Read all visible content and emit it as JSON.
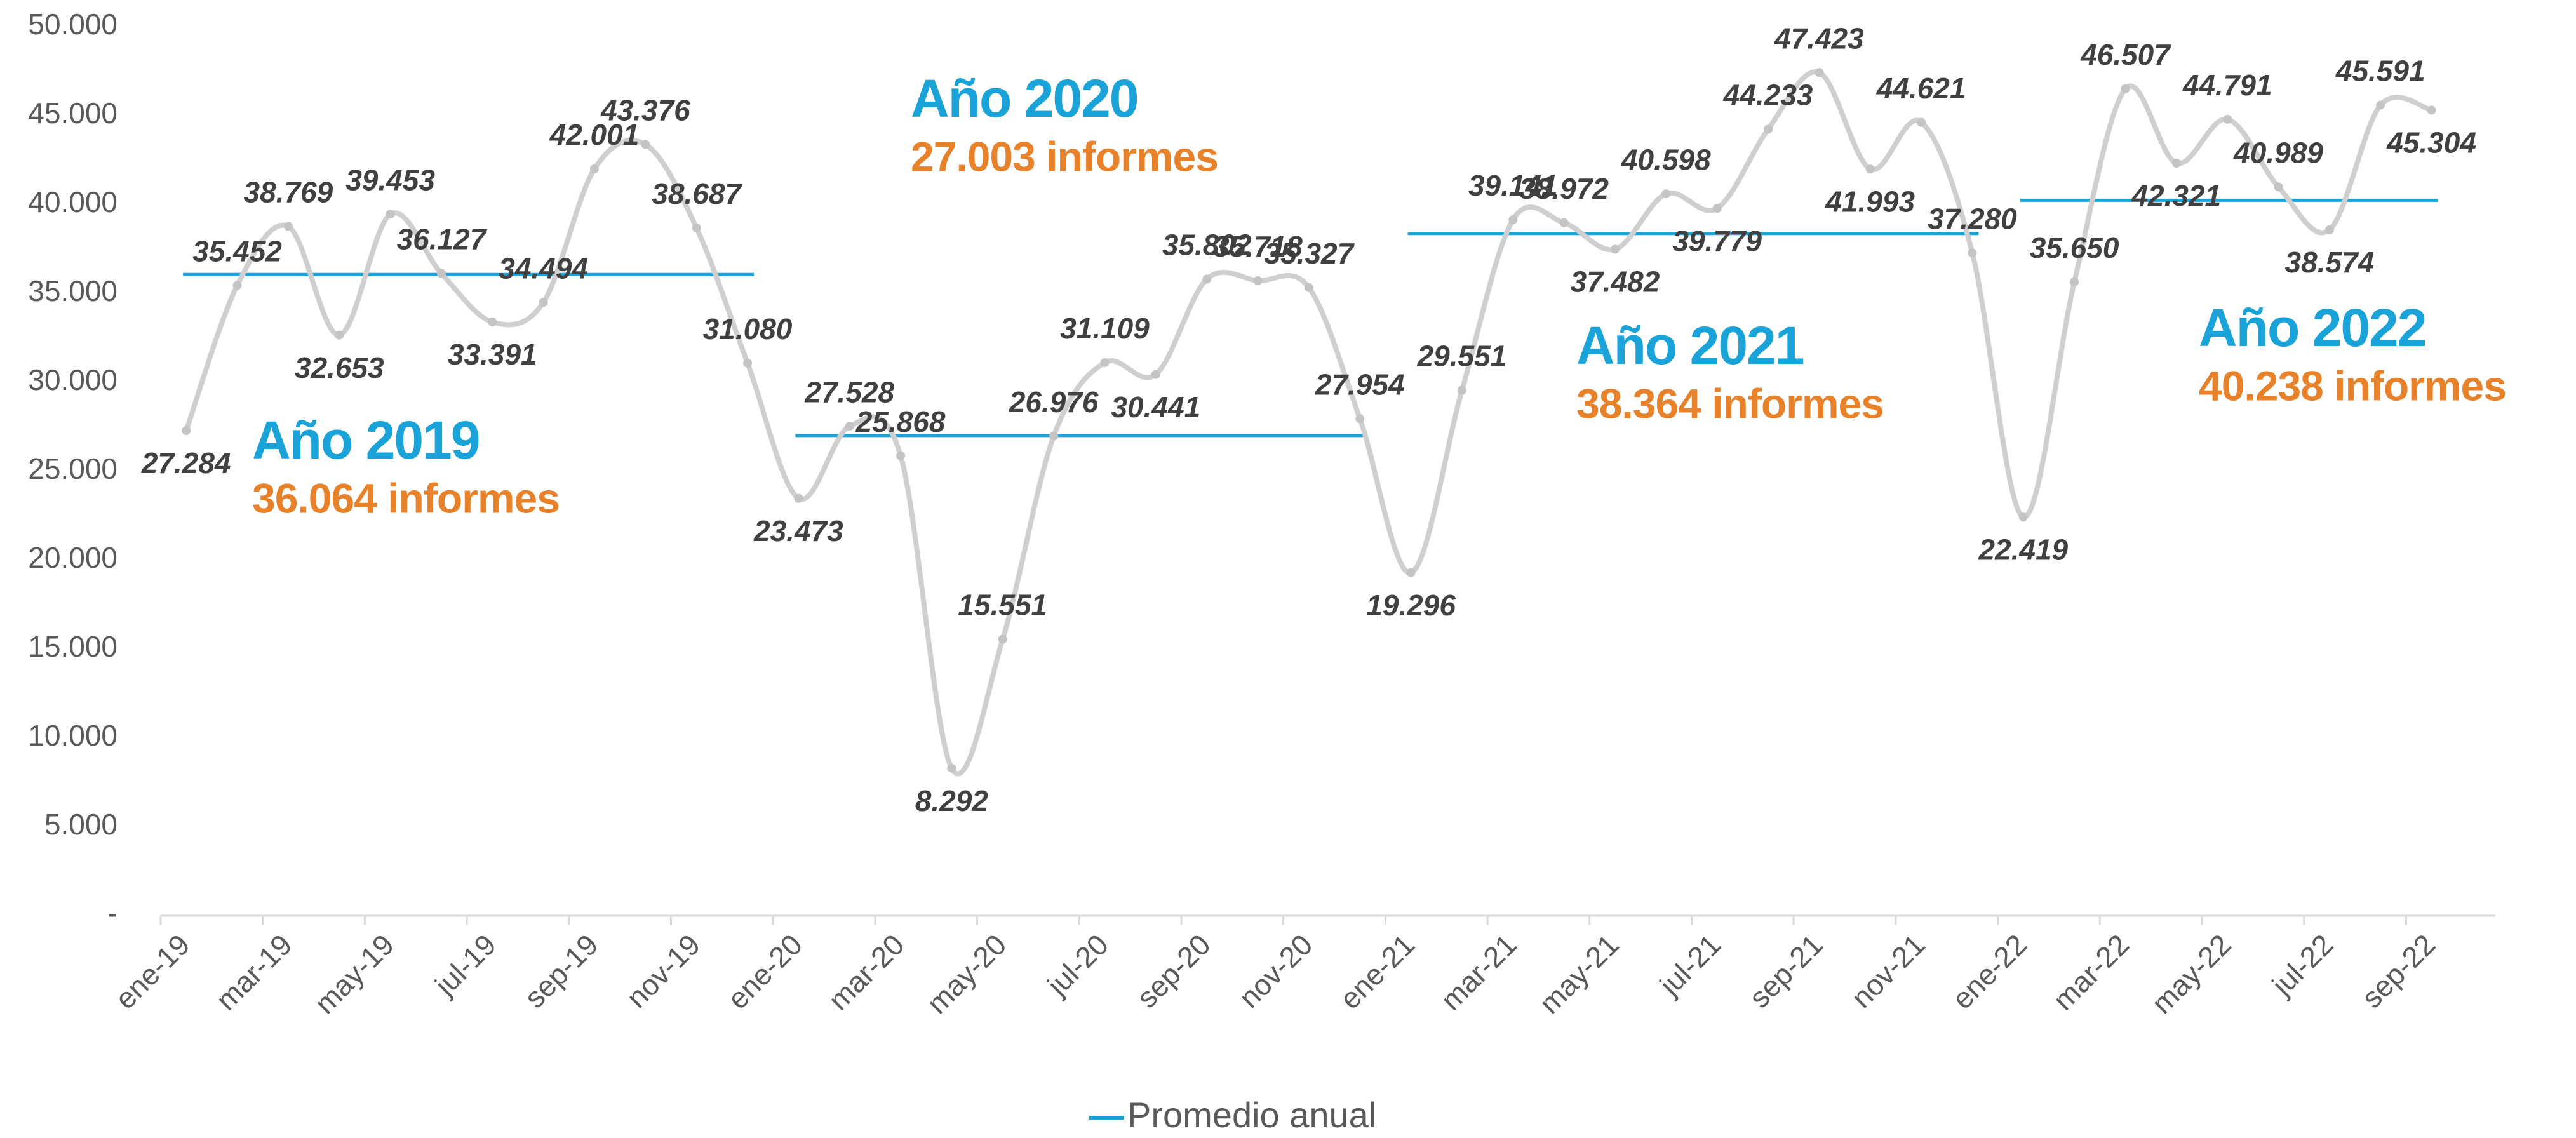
{
  "chart_data": {
    "type": "line",
    "categories": [
      "ene-19",
      null,
      "mar-19",
      null,
      "may-19",
      null,
      "jul-19",
      null,
      "sep-19",
      null,
      "nov-19",
      null,
      "ene-20",
      null,
      "mar-20",
      null,
      "may-20",
      null,
      "jul-20",
      null,
      "sep-20",
      null,
      "nov-20",
      null,
      "ene-21",
      null,
      "mar-21",
      null,
      "may-21",
      null,
      "jul-21",
      null,
      "sep-21",
      null,
      "nov-21",
      null,
      "ene-22",
      null,
      "mar-22",
      null,
      "may-22",
      null,
      "jul-22",
      null,
      "sep-22"
    ],
    "values": [
      27284,
      35452,
      38769,
      32653,
      39453,
      36127,
      33391,
      34494,
      42001,
      43376,
      38687,
      31080,
      23473,
      27528,
      25868,
      8292,
      15551,
      26976,
      31109,
      30441,
      35802,
      35718,
      35327,
      27954,
      19296,
      29551,
      39141,
      38972,
      37482,
      40598,
      39779,
      44233,
      47423,
      41993,
      44621,
      37280,
      22419,
      35650,
      46507,
      42321,
      44791,
      40989,
      38574,
      45591,
      45304
    ],
    "value_labels": [
      "27.284",
      "35.452",
      "38.769",
      "32.653",
      "39.453",
      "36.127",
      "33.391",
      "34.494",
      "42.001",
      "43.376",
      "38.687",
      "31.080",
      "23.473",
      "27.528",
      "25.868",
      "8.292",
      "15.551",
      "26.976",
      "31.109",
      "30.441",
      "35.802",
      "35.718",
      "35.327",
      "27.954",
      "19.296",
      "29.551",
      "39.141",
      "38.972",
      "37.482",
      "40.598",
      "39.779",
      "44.233",
      "47.423",
      "41.993",
      "44.621",
      "37.280",
      "22.419",
      "35.650",
      "46.507",
      "42.321",
      "44.791",
      "40.989",
      "38.574",
      "45.591",
      "45.304"
    ],
    "color": "#cfcfcf",
    "ylim": [
      0,
      50000
    ],
    "yticks": [
      {
        "value": 0,
        "label": "-"
      },
      {
        "value": 5000,
        "label": "5.000"
      },
      {
        "value": 10000,
        "label": "10.000"
      },
      {
        "value": 15000,
        "label": "15.000"
      },
      {
        "value": 20000,
        "label": "20.000"
      },
      {
        "value": 25000,
        "label": "25.000"
      },
      {
        "value": 30000,
        "label": "30.000"
      },
      {
        "value": 35000,
        "label": "35.000"
      },
      {
        "value": 40000,
        "label": "40.000"
      },
      {
        "value": 45000,
        "label": "45.000"
      },
      {
        "value": 50000,
        "label": "50.000"
      }
    ],
    "averages": {
      "name": "Promedio anual",
      "color": "#1aa3d9",
      "annotation_color": "#e8822a",
      "items": [
        {
          "label": "Año 2019",
          "value": 36064,
          "value_label": "36.064 informes"
        },
        {
          "label": "Año 2020",
          "value": 27003,
          "value_label": "27.003 informes"
        },
        {
          "label": "Año 2021",
          "value": 38364,
          "value_label": "38.364 informes"
        },
        {
          "label": "Año 2022",
          "value": 40238,
          "value_label": "40.238 informes"
        }
      ]
    }
  }
}
